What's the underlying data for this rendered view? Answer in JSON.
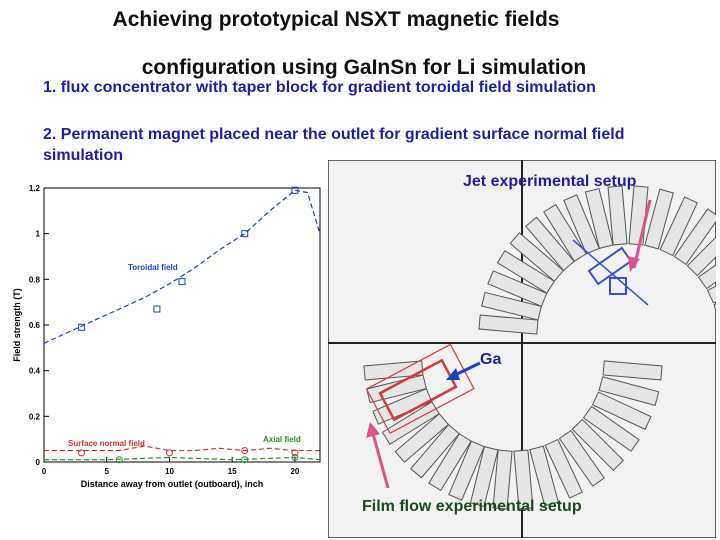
{
  "slide": {
    "title_line1": "Achieving prototypical NSXT magnetic fields",
    "title_line2": "configuration using GaInSn for Li simulation",
    "point1": "1. flux concentrator with taper block for gradient toroidal field simulation",
    "point2": "2. Permanent magnet placed near the outlet for gradient surface normal field simulation"
  },
  "photo": {
    "jet_caption": "Jet experimental setup",
    "film_caption": "Film flow experimental setup",
    "ga_label": "Ga",
    "colors": {
      "jet": "#3b4fd0",
      "film": "#d33a3a",
      "arrow_jet": "#e0508a",
      "arrow_film": "#e0508a"
    }
  },
  "chart_data": {
    "type": "line",
    "xlabel": "Distance away from outlet (outboard), inch",
    "ylabel": "Field strength (T)",
    "xlim": [
      0,
      22
    ],
    "ylim": [
      0,
      1.2
    ],
    "xticks": [
      "0",
      "5",
      "10",
      "15",
      "20"
    ],
    "yticks": [
      "0",
      "0.2",
      "0.4",
      "0.6",
      "0.8",
      "1",
      "1.2"
    ],
    "series": [
      {
        "name": "Toroidal field",
        "color": "#1f3fbf",
        "x": [
          0,
          2,
          4,
          6,
          8,
          10,
          12,
          14,
          16,
          18,
          20,
          21,
          22
        ],
        "y": [
          0.52,
          0.57,
          0.62,
          0.67,
          0.72,
          0.78,
          0.85,
          0.93,
          1.0,
          1.1,
          1.19,
          1.18,
          1.0
        ],
        "markers_x": [
          3,
          9,
          11,
          16,
          20
        ],
        "markers_y": [
          0.59,
          0.67,
          0.79,
          1.0,
          1.19
        ]
      },
      {
        "name": "Surface normal field",
        "color": "#d03030",
        "x": [
          0,
          3,
          6,
          8,
          10,
          12,
          14,
          16,
          18,
          20,
          22
        ],
        "y": [
          0.05,
          0.05,
          0.05,
          0.07,
          0.05,
          0.05,
          0.06,
          0.05,
          0.06,
          0.05,
          0.05
        ],
        "markers_x": [
          3,
          10,
          16,
          20
        ],
        "markers_y": [
          0.04,
          0.04,
          0.05,
          0.04
        ]
      },
      {
        "name": "Axial field",
        "color": "#2e8b2e",
        "x": [
          0,
          5,
          10,
          15,
          20,
          22
        ],
        "y": [
          0.01,
          0.01,
          0.02,
          0.01,
          0.02,
          0.01
        ],
        "markers_x": [
          6,
          16,
          20
        ],
        "markers_y": [
          0.01,
          0.01,
          0.02
        ]
      }
    ]
  }
}
